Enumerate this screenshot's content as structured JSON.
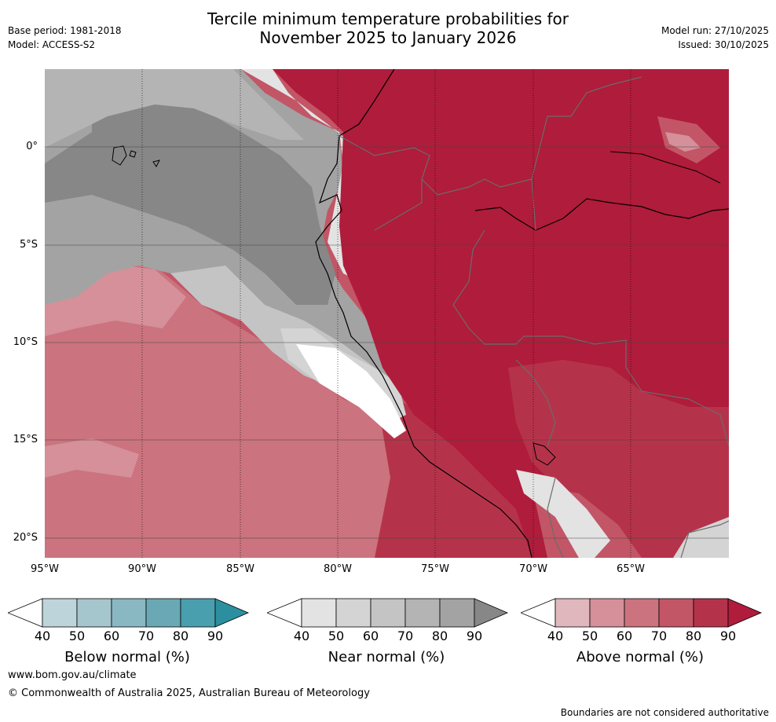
{
  "header": {
    "title_line1": "Tercile minimum temperature probabilities for",
    "title_line2": "November 2025 to January 2026",
    "base_period": "Base period: 1981-2018",
    "model": "Model: ACCESS-S2",
    "model_run": "Model run: 27/10/2025",
    "issued": "Issued: 30/10/2025"
  },
  "map": {
    "lat_labels": [
      "0°",
      "5°S",
      "10°S",
      "15°S",
      "20°S"
    ],
    "lon_labels": [
      "95°W",
      "90°W",
      "85°W",
      "80°W",
      "75°W",
      "70°W",
      "65°W"
    ]
  },
  "colorbars": [
    {
      "label": "Below normal (%)",
      "ticks": [
        "40",
        "50",
        "60",
        "70",
        "80",
        "90"
      ],
      "colors": [
        "#ffffff",
        "#bdd4da",
        "#a6c6cd",
        "#8ab8c2",
        "#6aa8b5",
        "#4a9faf",
        "#2b8fa0"
      ]
    },
    {
      "label": "Near normal (%)",
      "ticks": [
        "40",
        "50",
        "60",
        "70",
        "80",
        "90"
      ],
      "colors": [
        "#ffffff",
        "#e3e3e3",
        "#d4d4d4",
        "#c4c4c4",
        "#b4b4b4",
        "#a3a3a3",
        "#878787"
      ]
    },
    {
      "label": "Above normal (%)",
      "ticks": [
        "40",
        "50",
        "60",
        "70",
        "80",
        "90"
      ],
      "colors": [
        "#ffffff",
        "#e0b7bd",
        "#d5909a",
        "#cb737e",
        "#c25666",
        "#b5334a",
        "#b01c3b"
      ]
    }
  ],
  "footer": {
    "url": "www.bom.gov.au/climate",
    "copyright": "© Commonwealth of Australia 2025, Australian Bureau of Meteorology",
    "disclaimer": "Boundaries are not considered authoritative"
  }
}
